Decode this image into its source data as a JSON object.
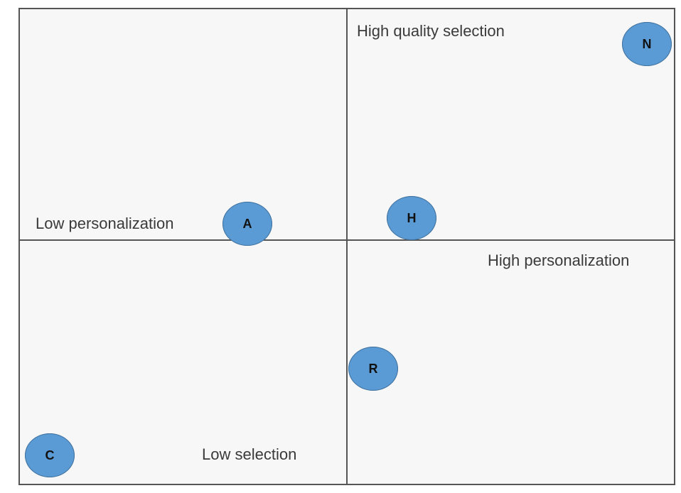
{
  "diagram": {
    "labels": {
      "top_right": "High quality selection",
      "left_axis": "Low personalization",
      "right_axis": "High personalization",
      "bottom": "Low selection"
    },
    "markers": [
      {
        "id": "N",
        "text": "N"
      },
      {
        "id": "A",
        "text": "A"
      },
      {
        "id": "H",
        "text": "H"
      },
      {
        "id": "R",
        "text": "R"
      },
      {
        "id": "C",
        "text": "C"
      }
    ],
    "colors": {
      "marker_fill": "#5b9bd5",
      "lines": "#555555",
      "background": "#f7f7f7"
    }
  }
}
